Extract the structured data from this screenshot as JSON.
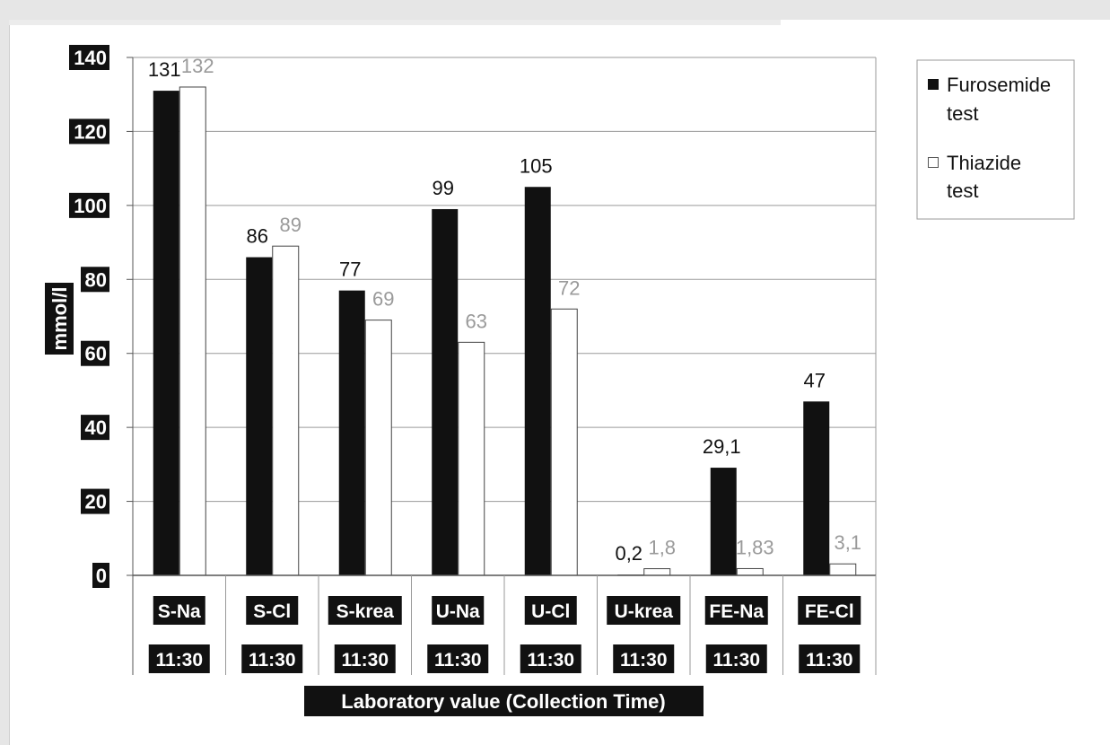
{
  "chart_data": {
    "type": "bar",
    "categories": [
      "S-Na",
      "S-Cl",
      "S-krea",
      "U-Na",
      "U-Cl",
      "U-krea",
      "FE-Na",
      "FE-Cl"
    ],
    "times": [
      "11:30",
      "11:30",
      "11:30",
      "11:30",
      "11:30",
      "11:30",
      "11:30",
      "11:30"
    ],
    "series": [
      {
        "name": "Furosemide test",
        "color": "#111111",
        "label_color": "#111111",
        "values": [
          131,
          86,
          77,
          99,
          105,
          0.2,
          29.1,
          47
        ],
        "labels": [
          "131",
          "86",
          "77",
          "99",
          "105",
          "0,2",
          "29,1",
          "47"
        ]
      },
      {
        "name": "Thiazide test",
        "color": "#ffffff",
        "label_color": "#9a9a9a",
        "values": [
          132,
          89,
          69,
          63,
          72,
          1.8,
          1.83,
          3.1
        ],
        "labels": [
          "132",
          "89",
          "69",
          "63",
          "72",
          "1,8",
          "1,83",
          "3,1"
        ]
      }
    ],
    "legend": [
      "Furosemide test",
      "Thiazide test"
    ],
    "xlabel": "Laboratory value (Collection Time)",
    "ylabel": "mmol/l",
    "ylim": [
      0,
      140
    ],
    "yticks": [
      0,
      20,
      40,
      60,
      80,
      100,
      120,
      140
    ],
    "grid": true,
    "legend_position": "right"
  }
}
